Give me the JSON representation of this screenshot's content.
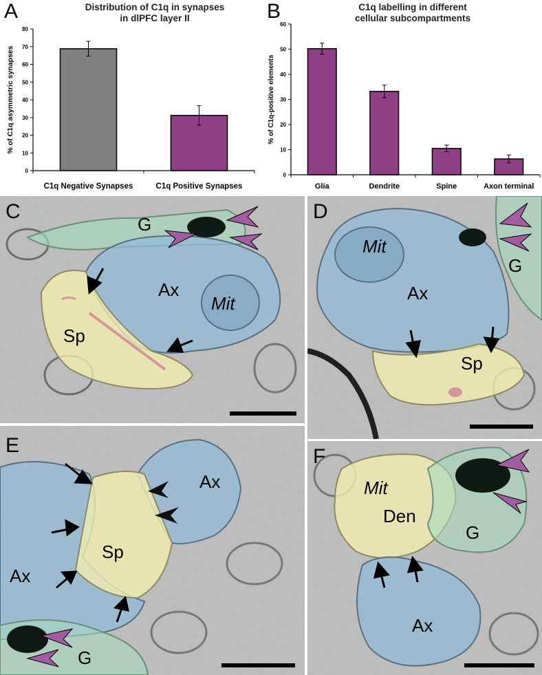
{
  "panels": {
    "a": {
      "letter": "A"
    },
    "b": {
      "letter": "B"
    },
    "c": {
      "letter": "C",
      "labels": {
        "g": "G",
        "ax": "Ax",
        "mit": "Mit",
        "sp": "Sp"
      }
    },
    "d": {
      "letter": "D",
      "labels": {
        "mit": "Mit",
        "g": "G",
        "ax": "Ax",
        "sp": "Sp"
      }
    },
    "e": {
      "letter": "E",
      "labels": {
        "ax_right": "Ax",
        "sp": "Sp",
        "ax_left": "Ax",
        "g": "G"
      }
    },
    "f": {
      "letter": "F",
      "labels": {
        "mit": "Mit",
        "den": "Den",
        "g": "G",
        "ax": "Ax"
      }
    }
  },
  "colors": {
    "gray_bar": "#808080",
    "purple_bar": "#8e3f86",
    "arrowhead_purple": "#a25ca0",
    "glia_tint": "#a7d8be",
    "axon_tint": "#92b9d7",
    "spine_tint": "#f1eeaf",
    "psd_tint": "#d7959a"
  },
  "chart_data": [
    {
      "type": "bar",
      "title": "Distribution of C1q in synapses in dlPFC layer II",
      "title_lines": [
        "Distribution of C1q in synapses",
        "in dlPFC layer II"
      ],
      "ylabel": "% of C1q asymmetric synapses",
      "xlabel": "",
      "categories": [
        "C1q Negative Synapses",
        "C1q Positive Synapses"
      ],
      "values": [
        68.8,
        31.2
      ],
      "errors": [
        4.2,
        5.5
      ],
      "bar_colors": [
        "#808080",
        "#8e3f86"
      ],
      "ylim": [
        0,
        80
      ],
      "yticks": [
        "0",
        "10",
        "20",
        "30",
        "40",
        "50",
        "60",
        "70",
        "80"
      ],
      "grid": false
    },
    {
      "type": "bar",
      "title": "C1q labelling in different cellular subcompartments",
      "title_lines": [
        "C1q labelling in different",
        "cellular subcompartments"
      ],
      "ylabel": "% of C1q-positive elements",
      "xlabel": "",
      "categories": [
        "Glia",
        "Dendrite",
        "Spine",
        "Axon terminal"
      ],
      "values": [
        50.2,
        33.2,
        10.5,
        6.3
      ],
      "errors": [
        2.2,
        2.5,
        1.3,
        1.6
      ],
      "bar_colors": [
        "#8e3f86",
        "#8e3f86",
        "#8e3f86",
        "#8e3f86"
      ],
      "ylim": [
        0,
        60
      ],
      "yticks": [
        "0",
        "10",
        "20",
        "30",
        "40",
        "50",
        "60"
      ],
      "grid": false
    }
  ]
}
